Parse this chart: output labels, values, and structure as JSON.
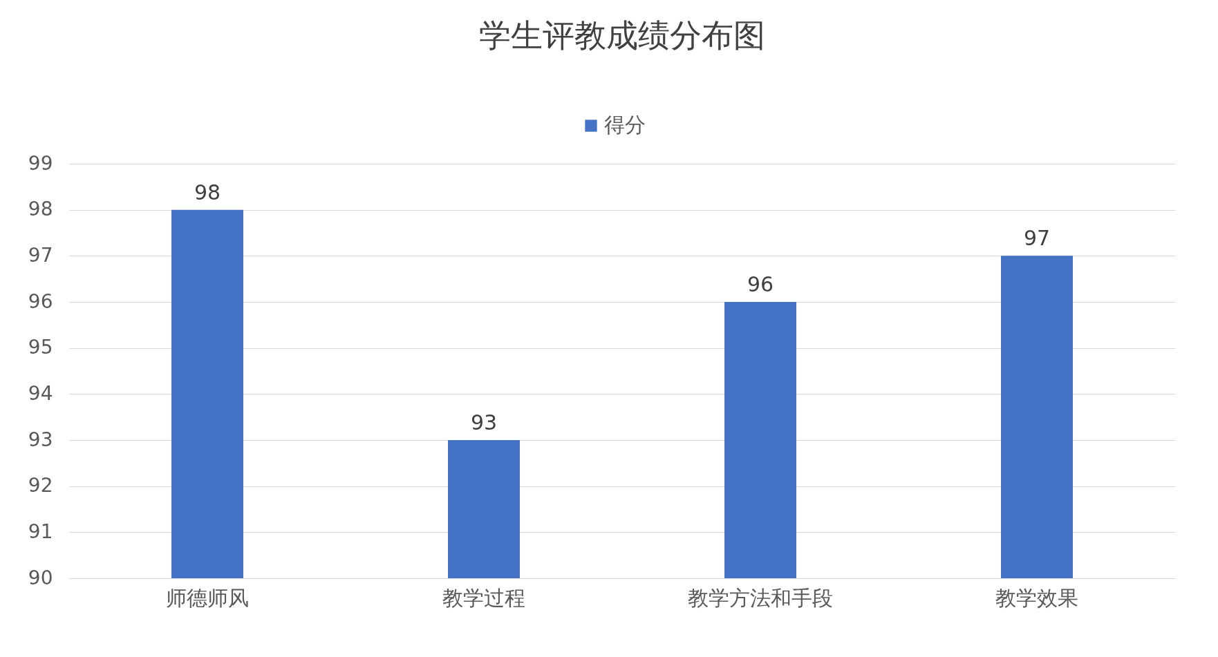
{
  "chart_data": {
    "type": "bar",
    "title": "学生评教成绩分布图",
    "categories": [
      "师德师风",
      "教学过程",
      "教学方法和手段",
      "教学效果"
    ],
    "series": [
      {
        "name": "得分",
        "color": "#4472c4",
        "values": [
          98,
          93,
          96,
          97
        ]
      }
    ],
    "ylim": [
      90,
      99
    ],
    "yticks": [
      90,
      91,
      92,
      93,
      94,
      95,
      96,
      97,
      98,
      99
    ],
    "grid": "y",
    "legend": "top",
    "data_labels": true
  }
}
